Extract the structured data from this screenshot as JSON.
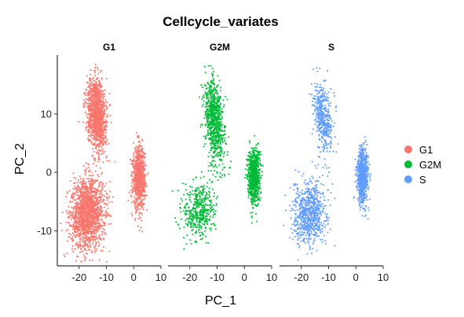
{
  "chart_data": {
    "type": "scatter",
    "title": "Cellcycle_variates",
    "xlabel": "PC_1",
    "ylabel": "PC_2",
    "xlim": [
      -28,
      10
    ],
    "ylim": [
      -16,
      19
    ],
    "xticks": [
      -20,
      -10,
      0,
      10
    ],
    "yticks": [
      -10,
      0,
      10
    ],
    "grid": false,
    "legend_position": "right",
    "panels": [
      {
        "name": "G1",
        "color": "#F8766D",
        "clusters": [
          {
            "cx": -13.5,
            "cy": 10.0,
            "sx": 2.5,
            "sy": 3.0,
            "n": 1300,
            "rot": 0.9
          },
          {
            "cx": -17.0,
            "cy": -7.0,
            "sx": 3.8,
            "sy": 2.8,
            "n": 1700,
            "rot": 0.6
          },
          {
            "cx": 2.0,
            "cy": -1.0,
            "sx": 1.1,
            "sy": 2.6,
            "n": 900,
            "rot": 0.0
          }
        ]
      },
      {
        "name": "G2M",
        "color": "#00BA38",
        "clusters": [
          {
            "cx": -11.0,
            "cy": 9.0,
            "sx": 2.5,
            "sy": 3.5,
            "n": 800,
            "rot": 0.9
          },
          {
            "cx": -16.5,
            "cy": -6.5,
            "sx": 3.3,
            "sy": 2.5,
            "n": 450,
            "rot": 0.6
          },
          {
            "cx": 3.5,
            "cy": -0.5,
            "sx": 1.1,
            "sy": 2.3,
            "n": 800,
            "rot": 0.0
          }
        ]
      },
      {
        "name": "S",
        "color": "#619CFF",
        "clusters": [
          {
            "cx": -12.0,
            "cy": 9.5,
            "sx": 2.3,
            "sy": 3.0,
            "n": 450,
            "rot": 0.9
          },
          {
            "cx": -17.0,
            "cy": -7.0,
            "sx": 3.5,
            "sy": 2.6,
            "n": 750,
            "rot": 0.6
          },
          {
            "cx": 2.5,
            "cy": -0.5,
            "sx": 1.0,
            "sy": 2.4,
            "n": 800,
            "rot": 0.0
          }
        ]
      }
    ],
    "legend": [
      {
        "label": "G1",
        "color": "#F8766D"
      },
      {
        "label": "G2M",
        "color": "#00BA38"
      },
      {
        "label": "S",
        "color": "#619CFF"
      }
    ]
  }
}
